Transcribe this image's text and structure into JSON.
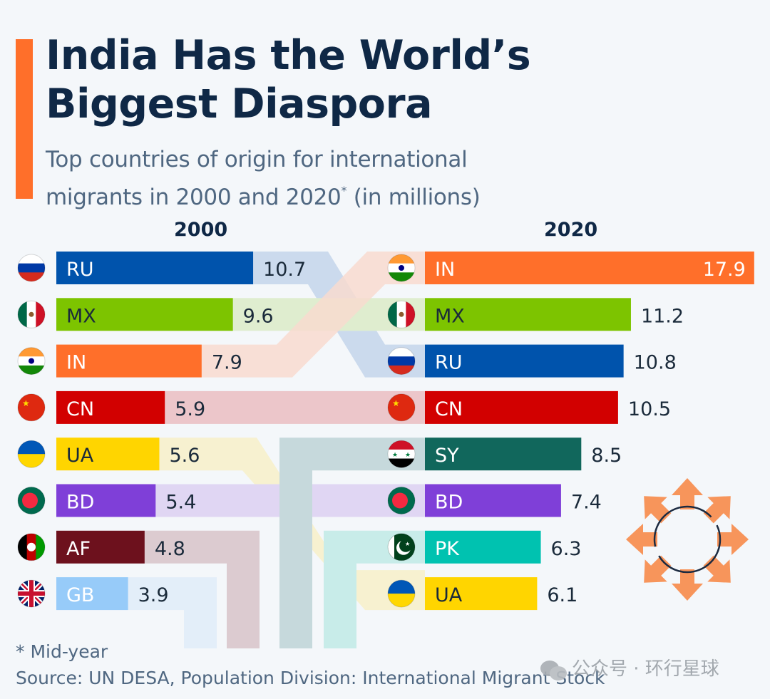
{
  "header": {
    "title_line1": "India Has the World’s",
    "title_line2": "Biggest Diaspora",
    "subtitle_line1": "Top countries of origin for international",
    "subtitle_line2_pre": "migrants in 2000 and 2020",
    "subtitle_line2_sup": "*",
    "subtitle_line2_post": " (in millions)",
    "accent_color": "#ff6f2a"
  },
  "footer": {
    "note": "* Mid-year",
    "source": "Source: UN DESA, Population Division: International Migrant Stock",
    "watermark": "公众号 · 环行星球"
  },
  "decor": {
    "icon": "migration-arrows-icon",
    "arrow_color": "#f7955b",
    "circle_color": "#1b2a40"
  },
  "chart_data": {
    "type": "bar",
    "title": "India Has the World’s Biggest Diaspora",
    "subtitle": "Top countries of origin for international migrants in 2000 and 2020* (in millions)",
    "unit": "millions",
    "groups": [
      "2000",
      "2020"
    ],
    "countries": {
      "RU": {
        "color": "#0053ac",
        "light": "#c3d5ea",
        "flag": "russia-flag"
      },
      "MX": {
        "color": "#7dc400",
        "light": "#dfedcf",
        "flag": "mexico-flag"
      },
      "IN": {
        "color": "#ff6f2a",
        "light": "#f8dbcf",
        "flag": "india-flag"
      },
      "CN": {
        "color": "#d20000",
        "light": "#ecc6ca",
        "flag": "china-flag"
      },
      "UA": {
        "color": "#ffd500",
        "light": "#f7f0c8",
        "flag": "ukraine-flag"
      },
      "BD": {
        "color": "#7f3fd8",
        "light": "#e0d6f3",
        "flag": "bangladesh-flag"
      },
      "AF": {
        "color": "#6d111d",
        "light": "#dccbd0",
        "flag": "afghanistan-flag"
      },
      "GB": {
        "color": "#97cbf9",
        "light": "#e3eef9",
        "flag": "uk-flag"
      },
      "SY": {
        "color": "#11675c",
        "light": "#c6d9dc",
        "flag": "syria-flag"
      },
      "PK": {
        "color": "#00c2b0",
        "light": "#c8ece9",
        "flag": "pakistan-flag"
      }
    },
    "series": [
      {
        "name": "2000",
        "categories": [
          "RU",
          "MX",
          "IN",
          "CN",
          "UA",
          "BD",
          "AF",
          "GB"
        ],
        "values": [
          10.7,
          9.6,
          7.9,
          5.9,
          5.6,
          5.4,
          4.8,
          3.9
        ]
      },
      {
        "name": "2020",
        "categories": [
          "IN",
          "MX",
          "RU",
          "CN",
          "SY",
          "BD",
          "PK",
          "UA"
        ],
        "values": [
          17.9,
          11.2,
          10.8,
          10.5,
          8.5,
          7.4,
          6.3,
          6.1
        ]
      }
    ],
    "dark_label_countries": [
      "MX",
      "UA"
    ]
  }
}
